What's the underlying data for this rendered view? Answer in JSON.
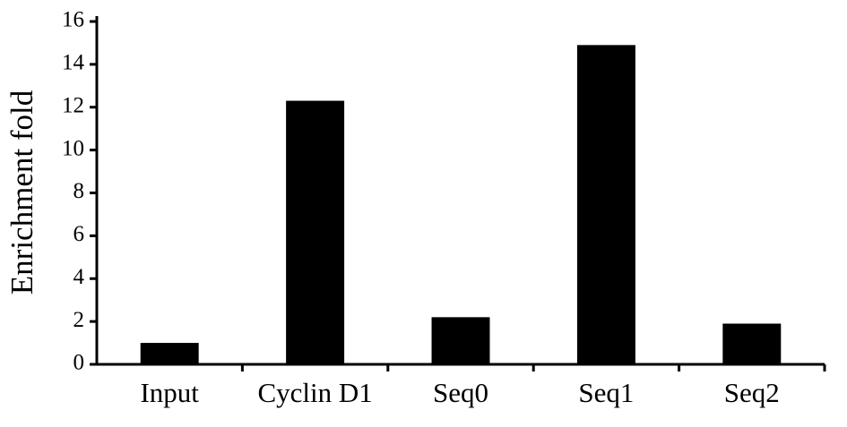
{
  "chart_data": {
    "type": "bar",
    "y_label": "Enrichment fold",
    "categories": [
      "Input",
      "Cyclin D1",
      "Seq0",
      "Seq1",
      "Seq2"
    ],
    "values": [
      1.0,
      12.3,
      2.2,
      14.9,
      1.9
    ],
    "color": "#000000",
    "ylim": [
      0,
      16
    ],
    "yticks": [
      0,
      2,
      4,
      6,
      8,
      10,
      12,
      14,
      16
    ],
    "grid": false
  }
}
